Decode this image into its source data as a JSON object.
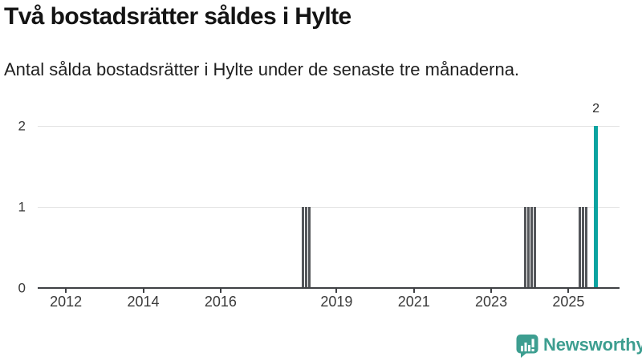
{
  "header": {
    "title": "Två bostadsrätter såldes i Hylte",
    "subtitle": "Antal sålda bostadsrätter i Hylte under de senaste tre månaderna."
  },
  "chart_data": {
    "type": "bar",
    "title": "Två bostadsrätter såldes i Hylte",
    "subtitle": "Antal sålda bostadsrätter i Hylte under de senaste tre månaderna.",
    "xlabel": "",
    "ylabel": "",
    "ylim": [
      0,
      2
    ],
    "yticks": [
      0,
      1,
      2
    ],
    "xticks": [
      2012,
      2014,
      2016,
      2019,
      2021,
      2023,
      2025
    ],
    "x_domain": [
      2011.27,
      2026.32
    ],
    "grid": "horizontal",
    "legend": "none",
    "bars": [
      {
        "month": "2018-02",
        "value": 1,
        "series": "past"
      },
      {
        "month": "2018-03",
        "value": 1,
        "series": "past"
      },
      {
        "month": "2018-04",
        "value": 1,
        "series": "past"
      },
      {
        "month": "2023-11",
        "value": 1,
        "series": "past"
      },
      {
        "month": "2023-12",
        "value": 1,
        "series": "past"
      },
      {
        "month": "2024-01",
        "value": 1,
        "series": "past"
      },
      {
        "month": "2024-02",
        "value": 1,
        "series": "past"
      },
      {
        "month": "2025-04",
        "value": 1,
        "series": "past"
      },
      {
        "month": "2025-05",
        "value": 1,
        "series": "past"
      },
      {
        "month": "2025-06",
        "value": 1,
        "series": "past"
      },
      {
        "month": "2025-09",
        "value": 2,
        "series": "current",
        "label": "2"
      }
    ],
    "colors": {
      "past": "#54565a",
      "current": "#0aa3a0",
      "gridline": "#e4e4e4",
      "axis": "#3f4144",
      "tick_text": "#3a3a3a"
    }
  },
  "footer": {
    "brand": "Newsworthy",
    "brand_color": "#3d9e90",
    "logo_icon": "bar-chart-speech-bubble-icon"
  }
}
